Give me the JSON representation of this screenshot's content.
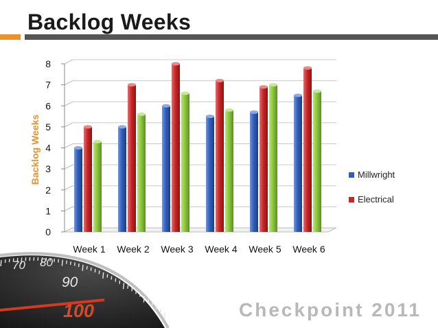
{
  "slide": {
    "title": "Backlog Weeks",
    "brand": "Checkpoint 2011",
    "gauge": {
      "labels": [
        "70",
        "80",
        "90",
        "100"
      ]
    }
  },
  "colors": {
    "accent": "#e8932b",
    "bar_gray": "#555555",
    "millwright": "#2f5fb8",
    "electrical": "#c62828",
    "third": "#8cc63f"
  },
  "chart_data": {
    "type": "bar",
    "categories": [
      "Week 1",
      "Week 2",
      "Week 3",
      "Week 4",
      "Week 5",
      "Week 6"
    ],
    "series": [
      {
        "name": "Millwright",
        "values": [
          4.0,
          5.0,
          6.0,
          5.5,
          5.7,
          6.5
        ]
      },
      {
        "name": "Electrical",
        "values": [
          5.0,
          7.0,
          8.0,
          7.2,
          6.9,
          7.8
        ]
      },
      {
        "values": [
          4.3,
          5.6,
          6.6,
          5.8,
          7.0,
          6.7
        ]
      }
    ],
    "ylabel": "Backlog Weeks",
    "ylim": [
      0,
      8
    ],
    "yticks": [
      0,
      1,
      2,
      3,
      4,
      5,
      6,
      7,
      8
    ],
    "grid": true,
    "legend": "right"
  }
}
